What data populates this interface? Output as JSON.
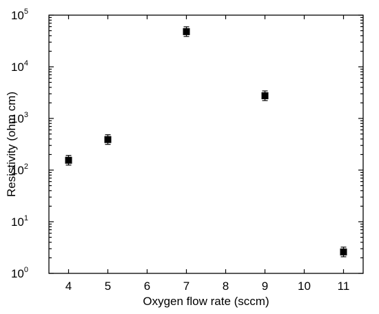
{
  "chart_data": {
    "type": "scatter",
    "xlabel": "Oxygen flow rate (sccm)",
    "ylabel": "Resistivity (ohm cm)",
    "xlim": [
      3.5,
      11.5
    ],
    "ylim": [
      1,
      100000
    ],
    "yscale": "log",
    "x_ticks": [
      "4",
      "5",
      "6",
      "7",
      "8",
      "9",
      "10",
      "11"
    ],
    "y_ticks": [
      {
        "base": "10",
        "exp": "0"
      },
      {
        "base": "10",
        "exp": "1"
      },
      {
        "base": "10",
        "exp": "2"
      },
      {
        "base": "10",
        "exp": "3"
      },
      {
        "base": "10",
        "exp": "4"
      },
      {
        "base": "10",
        "exp": "5"
      }
    ],
    "grid": false,
    "marker": "square",
    "marker_color": "#000000",
    "series": [
      {
        "points": [
          {
            "x": 4,
            "y": 155
          },
          {
            "x": 5,
            "y": 390
          },
          {
            "x": 7,
            "y": 48000
          },
          {
            "x": 9,
            "y": 2750
          },
          {
            "x": 11,
            "y": 2.6
          }
        ]
      }
    ]
  }
}
